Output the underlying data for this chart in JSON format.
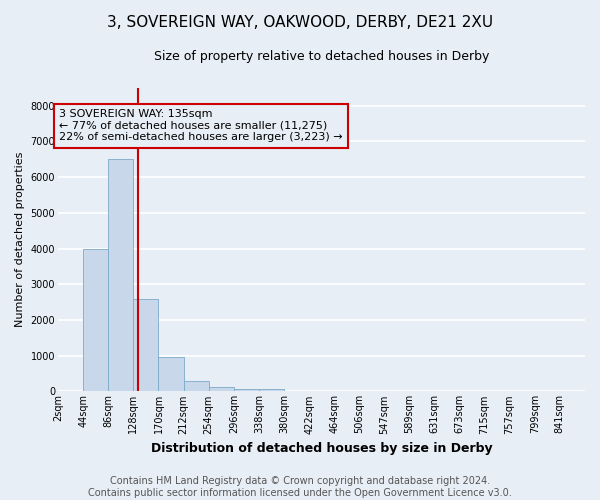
{
  "title": "3, SOVEREIGN WAY, OAKWOOD, DERBY, DE21 2XU",
  "subtitle": "Size of property relative to detached houses in Derby",
  "xlabel": "Distribution of detached houses by size in Derby",
  "ylabel": "Number of detached properties",
  "bar_color": "#c8d8ea",
  "bar_edge_color": "#7aaac8",
  "background_color": "#e8eef5",
  "grid_color": "#ffffff",
  "bins": [
    2,
    44,
    86,
    128,
    170,
    212,
    254,
    296,
    338,
    380,
    422,
    464,
    506,
    547,
    589,
    631,
    673,
    715,
    757,
    799,
    841
  ],
  "bin_labels": [
    "2sqm",
    "44sqm",
    "86sqm",
    "128sqm",
    "170sqm",
    "212sqm",
    "254sqm",
    "296sqm",
    "338sqm",
    "380sqm",
    "422sqm",
    "464sqm",
    "506sqm",
    "547sqm",
    "589sqm",
    "631sqm",
    "673sqm",
    "715sqm",
    "757sqm",
    "799sqm",
    "841sqm"
  ],
  "bar_heights": [
    0,
    4000,
    6500,
    2600,
    950,
    300,
    120,
    70,
    60,
    10,
    0,
    0,
    0,
    0,
    0,
    0,
    0,
    0,
    0,
    0
  ],
  "ylim": [
    0,
    8500
  ],
  "yticks": [
    0,
    1000,
    2000,
    3000,
    4000,
    5000,
    6000,
    7000,
    8000
  ],
  "property_size": 135,
  "property_line_color": "#cc0000",
  "annotation_text": "3 SOVEREIGN WAY: 135sqm\n← 77% of detached houses are smaller (11,275)\n22% of semi-detached houses are larger (3,223) →",
  "annotation_box_color": "#cc0000",
  "footer_text": "Contains HM Land Registry data © Crown copyright and database right 2024.\nContains public sector information licensed under the Open Government Licence v3.0.",
  "title_fontsize": 11,
  "subtitle_fontsize": 9,
  "annotation_fontsize": 8,
  "footer_fontsize": 7,
  "ylabel_fontsize": 8,
  "xlabel_fontsize": 9,
  "tick_fontsize": 7
}
